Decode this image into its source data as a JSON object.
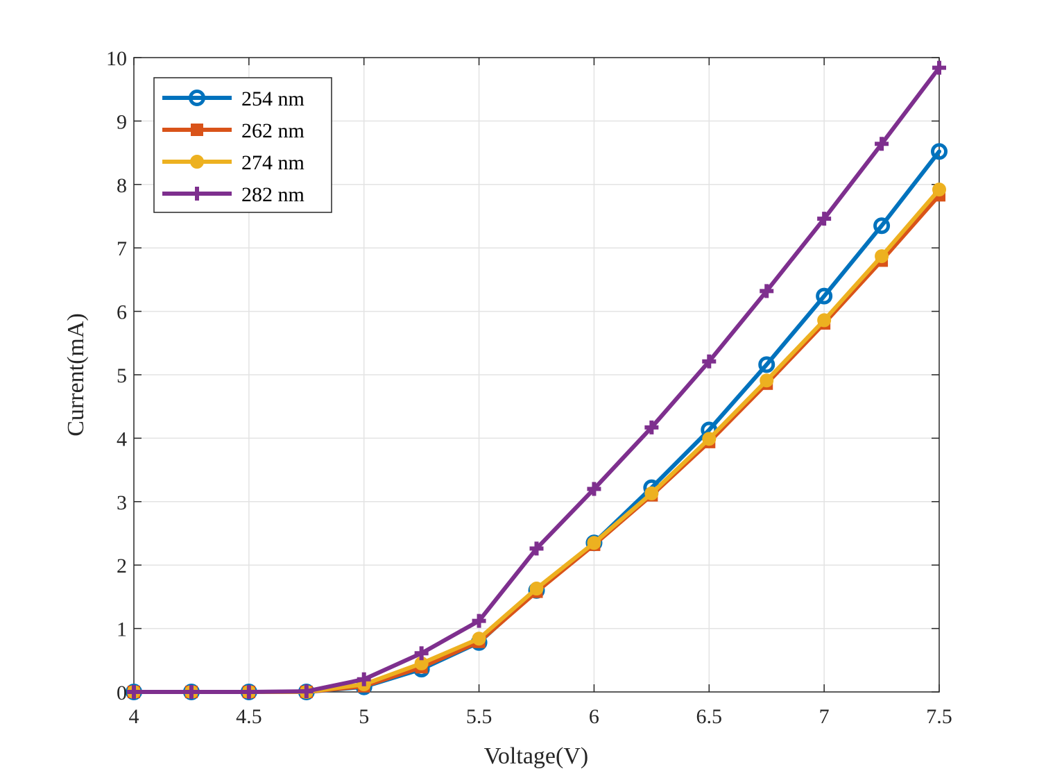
{
  "chart_data": {
    "type": "line",
    "title": "",
    "xlabel": "Voltage(V)",
    "ylabel": "Current(mA)",
    "xlim": [
      4,
      7.5
    ],
    "ylim": [
      0,
      10
    ],
    "xticks": [
      4,
      4.5,
      5,
      5.5,
      6,
      6.5,
      7,
      7.5
    ],
    "xtick_labels": [
      "4",
      "4.5",
      "5",
      "5.5",
      "6",
      "6.5",
      "7",
      "7.5"
    ],
    "yticks": [
      0,
      1,
      2,
      3,
      4,
      5,
      6,
      7,
      8,
      9,
      10
    ],
    "ytick_labels": [
      "0",
      "1",
      "2",
      "3",
      "4",
      "5",
      "6",
      "7",
      "8",
      "9",
      "10"
    ],
    "grid": true,
    "legend_position": "top-left",
    "x": [
      4,
      4.25,
      4.5,
      4.75,
      5,
      5.25,
      5.5,
      5.75,
      6,
      6.25,
      6.5,
      6.75,
      7,
      7.25,
      7.5
    ],
    "series": [
      {
        "name": "254 nm",
        "color": "#0072BD",
        "marker": "circle-open",
        "values": [
          0,
          0,
          0,
          0,
          0.08,
          0.36,
          0.78,
          1.6,
          2.35,
          3.22,
          4.13,
          5.16,
          6.24,
          7.35,
          8.52
        ]
      },
      {
        "name": "262 nm",
        "color": "#D95319",
        "marker": "square",
        "values": [
          0,
          0,
          0,
          0,
          0.09,
          0.39,
          0.79,
          1.58,
          2.32,
          3.1,
          3.94,
          4.86,
          5.81,
          6.8,
          7.83
        ]
      },
      {
        "name": "274 nm",
        "color": "#EDB120",
        "marker": "circle-filled",
        "values": [
          0,
          0,
          0,
          0,
          0.12,
          0.45,
          0.84,
          1.63,
          2.35,
          3.13,
          3.99,
          4.91,
          5.86,
          6.87,
          7.92
        ]
      },
      {
        "name": "282 nm",
        "color": "#7E2F8E",
        "marker": "plus",
        "values": [
          0,
          0,
          0,
          0.01,
          0.2,
          0.61,
          1.12,
          2.26,
          3.2,
          4.17,
          5.21,
          6.32,
          7.46,
          8.64,
          9.84
        ]
      }
    ]
  }
}
